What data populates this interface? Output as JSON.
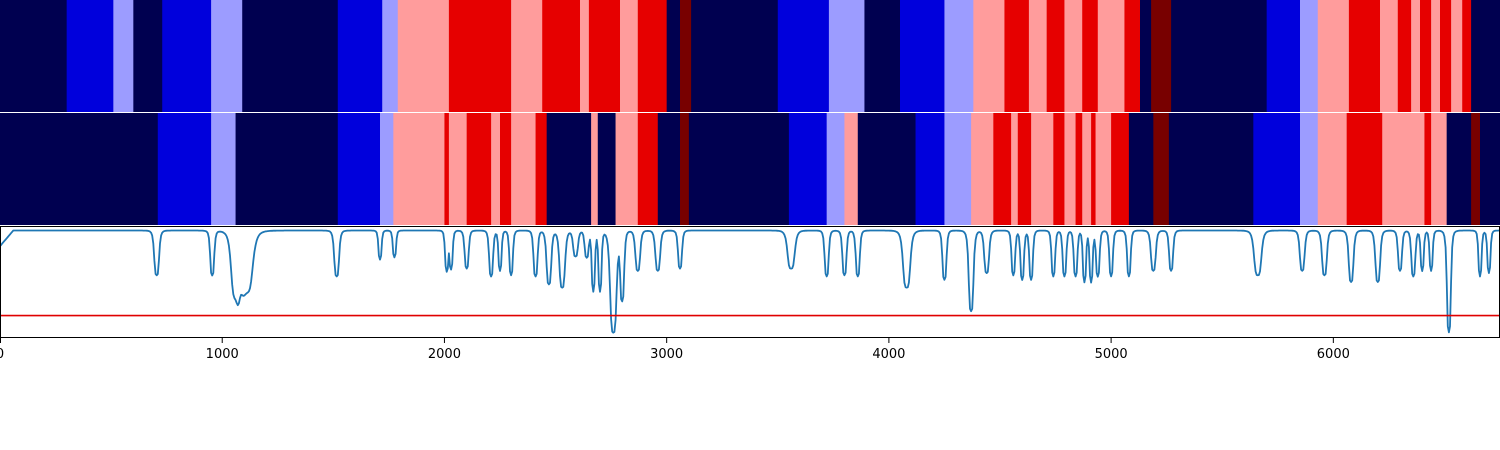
{
  "palette": {
    "0": "#000050",
    "1": "#0000dc",
    "2": "#9c9cff",
    "3": "#ff9c9c",
    "4": "#e60000",
    "5": "#780000",
    "signal_line": "#1f77b4",
    "threshold_line": "#e00000"
  },
  "chart_data": [
    {
      "type": "heatmap",
      "title": "",
      "xlim": [
        0,
        6750
      ],
      "segments": [
        [
          0,
          300,
          0
        ],
        [
          300,
          510,
          1
        ],
        [
          510,
          600,
          2
        ],
        [
          600,
          730,
          0
        ],
        [
          730,
          950,
          1
        ],
        [
          950,
          1090,
          2
        ],
        [
          1090,
          1520,
          0
        ],
        [
          1520,
          1720,
          1
        ],
        [
          1720,
          1790,
          2
        ],
        [
          1790,
          2020,
          3
        ],
        [
          2020,
          2300,
          4
        ],
        [
          2300,
          2440,
          3
        ],
        [
          2440,
          2610,
          4
        ],
        [
          2610,
          2650,
          3
        ],
        [
          2650,
          2790,
          4
        ],
        [
          2790,
          2870,
          3
        ],
        [
          2870,
          3000,
          4
        ],
        [
          3000,
          3060,
          0
        ],
        [
          3060,
          3110,
          5
        ],
        [
          3110,
          3500,
          0
        ],
        [
          3500,
          3730,
          1
        ],
        [
          3730,
          3890,
          2
        ],
        [
          3890,
          4050,
          0
        ],
        [
          4050,
          4250,
          1
        ],
        [
          4250,
          4380,
          2
        ],
        [
          4380,
          4520,
          3
        ],
        [
          4520,
          4630,
          4
        ],
        [
          4630,
          4710,
          3
        ],
        [
          4710,
          4790,
          4
        ],
        [
          4790,
          4870,
          3
        ],
        [
          4870,
          4940,
          4
        ],
        [
          4940,
          5060,
          3
        ],
        [
          5060,
          5130,
          4
        ],
        [
          5130,
          5180,
          0
        ],
        [
          5180,
          5270,
          5
        ],
        [
          5270,
          5700,
          0
        ],
        [
          5700,
          5850,
          1
        ],
        [
          5850,
          5930,
          2
        ],
        [
          5930,
          6070,
          3
        ],
        [
          6070,
          6210,
          4
        ],
        [
          6210,
          6290,
          3
        ],
        [
          6290,
          6350,
          4
        ],
        [
          6350,
          6390,
          3
        ],
        [
          6390,
          6440,
          4
        ],
        [
          6440,
          6480,
          3
        ],
        [
          6480,
          6530,
          4
        ],
        [
          6530,
          6580,
          3
        ],
        [
          6580,
          6620,
          4
        ],
        [
          6620,
          6750,
          0
        ]
      ]
    },
    {
      "type": "heatmap",
      "title": "",
      "xlim": [
        0,
        6750
      ],
      "segments": [
        [
          0,
          710,
          0
        ],
        [
          710,
          950,
          1
        ],
        [
          950,
          1060,
          2
        ],
        [
          1060,
          1520,
          0
        ],
        [
          1520,
          1710,
          1
        ],
        [
          1710,
          1770,
          2
        ],
        [
          1770,
          2000,
          3
        ],
        [
          2000,
          2020,
          4
        ],
        [
          2020,
          2100,
          3
        ],
        [
          2100,
          2210,
          4
        ],
        [
          2210,
          2250,
          3
        ],
        [
          2250,
          2300,
          4
        ],
        [
          2300,
          2410,
          3
        ],
        [
          2410,
          2460,
          4
        ],
        [
          2460,
          2660,
          0
        ],
        [
          2660,
          2690,
          3
        ],
        [
          2690,
          2770,
          0
        ],
        [
          2770,
          2870,
          3
        ],
        [
          2870,
          2960,
          4
        ],
        [
          2960,
          3060,
          0
        ],
        [
          3060,
          3100,
          5
        ],
        [
          3100,
          3550,
          0
        ],
        [
          3550,
          3720,
          1
        ],
        [
          3720,
          3800,
          2
        ],
        [
          3800,
          3860,
          3
        ],
        [
          3860,
          4120,
          0
        ],
        [
          4120,
          4250,
          1
        ],
        [
          4250,
          4370,
          2
        ],
        [
          4370,
          4470,
          3
        ],
        [
          4470,
          4550,
          4
        ],
        [
          4550,
          4580,
          3
        ],
        [
          4580,
          4640,
          4
        ],
        [
          4640,
          4740,
          3
        ],
        [
          4740,
          4790,
          4
        ],
        [
          4790,
          4840,
          3
        ],
        [
          4840,
          4870,
          4
        ],
        [
          4870,
          4910,
          3
        ],
        [
          4910,
          4930,
          4
        ],
        [
          4930,
          5000,
          3
        ],
        [
          5000,
          5080,
          4
        ],
        [
          5080,
          5190,
          0
        ],
        [
          5190,
          5260,
          5
        ],
        [
          5260,
          5640,
          0
        ],
        [
          5640,
          5850,
          1
        ],
        [
          5850,
          5930,
          2
        ],
        [
          5930,
          6060,
          3
        ],
        [
          6060,
          6220,
          4
        ],
        [
          6220,
          6410,
          3
        ],
        [
          6410,
          6440,
          4
        ],
        [
          6440,
          6510,
          3
        ],
        [
          6510,
          6620,
          0
        ],
        [
          6620,
          6660,
          5
        ],
        [
          6660,
          6750,
          0
        ]
      ]
    },
    {
      "type": "line",
      "title": "",
      "xlabel": "",
      "ylabel": "",
      "xlim": [
        0,
        6750
      ],
      "ylim": [
        0,
        1
      ],
      "xticks": [
        0,
        1000,
        2000,
        3000,
        4000,
        5000,
        6000
      ],
      "threshold": 0.2,
      "baseline": 0.96,
      "dips": [
        [
          705,
          0.56,
          12
        ],
        [
          955,
          0.56,
          10
        ],
        [
          1060,
          0.4,
          22
        ],
        [
          1110,
          0.42,
          30
        ],
        [
          1515,
          0.55,
          12
        ],
        [
          1710,
          0.7,
          8
        ],
        [
          1775,
          0.72,
          8
        ],
        [
          2010,
          0.6,
          8
        ],
        [
          2030,
          0.62,
          8
        ],
        [
          2100,
          0.62,
          10
        ],
        [
          2210,
          0.55,
          10
        ],
        [
          2250,
          0.6,
          8
        ],
        [
          2300,
          0.56,
          9
        ],
        [
          2410,
          0.55,
          10
        ],
        [
          2470,
          0.48,
          12
        ],
        [
          2530,
          0.45,
          14
        ],
        [
          2590,
          0.73,
          12
        ],
        [
          2640,
          0.72,
          10
        ],
        [
          2670,
          0.42,
          8
        ],
        [
          2700,
          0.42,
          8
        ],
        [
          2760,
          0.05,
          16
        ],
        [
          2800,
          0.35,
          10
        ],
        [
          2870,
          0.6,
          12
        ],
        [
          2960,
          0.6,
          12
        ],
        [
          3060,
          0.62,
          10
        ],
        [
          3560,
          0.62,
          18
        ],
        [
          3720,
          0.55,
          10
        ],
        [
          3800,
          0.56,
          10
        ],
        [
          3860,
          0.55,
          10
        ],
        [
          4080,
          0.45,
          18
        ],
        [
          4250,
          0.52,
          10
        ],
        [
          4370,
          0.24,
          12
        ],
        [
          4440,
          0.58,
          12
        ],
        [
          4560,
          0.56,
          9
        ],
        [
          4600,
          0.52,
          9
        ],
        [
          4640,
          0.52,
          9
        ],
        [
          4740,
          0.55,
          9
        ],
        [
          4790,
          0.55,
          9
        ],
        [
          4840,
          0.55,
          9
        ],
        [
          4880,
          0.5,
          8
        ],
        [
          4910,
          0.5,
          8
        ],
        [
          4940,
          0.55,
          9
        ],
        [
          5000,
          0.55,
          9
        ],
        [
          5080,
          0.55,
          9
        ],
        [
          5190,
          0.6,
          12
        ],
        [
          5270,
          0.6,
          10
        ],
        [
          5660,
          0.56,
          18
        ],
        [
          5860,
          0.6,
          12
        ],
        [
          5960,
          0.56,
          12
        ],
        [
          6080,
          0.5,
          12
        ],
        [
          6200,
          0.5,
          12
        ],
        [
          6300,
          0.6,
          10
        ],
        [
          6360,
          0.55,
          10
        ],
        [
          6400,
          0.6,
          8
        ],
        [
          6440,
          0.6,
          8
        ],
        [
          6520,
          0.05,
          10
        ],
        [
          6660,
          0.55,
          8
        ],
        [
          6700,
          0.58,
          8
        ]
      ]
    }
  ]
}
